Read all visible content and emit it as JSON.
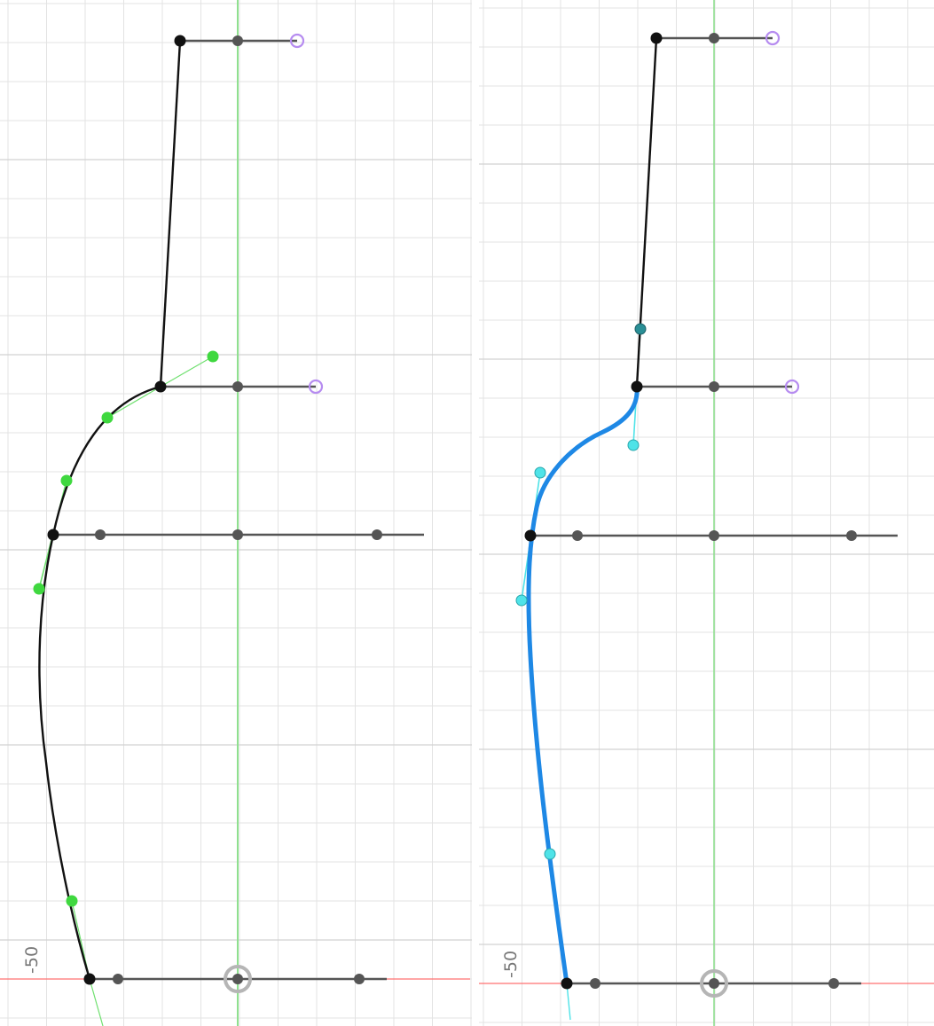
{
  "colors": {
    "background": "#ffffff",
    "grid": "#e3e3e3",
    "grid_major": "#d2d2d2",
    "center_axis": "#8fe08f",
    "origin_axis": "#ff7070",
    "profile_line": "#111111",
    "handle_line": "#555555",
    "handle_point": "#555555",
    "end_point": "#b68cf0",
    "green_point": "#3fd83f",
    "spline_blue": "#1e88e5",
    "cyan_point": "#4fe3e8"
  },
  "labels": {
    "left_axis_value": "-50",
    "right_axis_value": "-50"
  },
  "icons": {
    "origin_marker": "origin-target-icon",
    "end_handle": "hollow-circle-icon"
  }
}
